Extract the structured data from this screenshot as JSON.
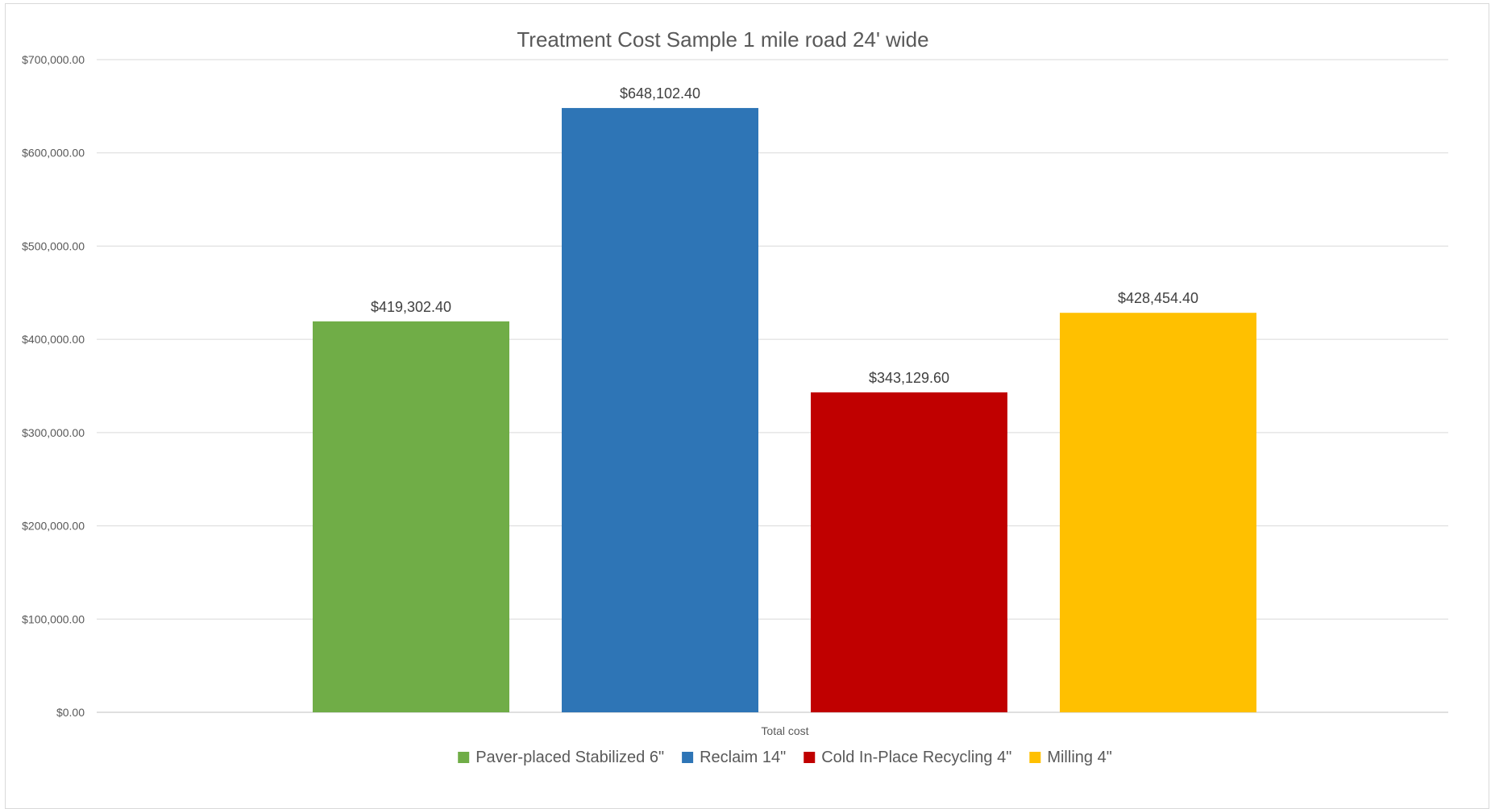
{
  "chart_data": {
    "type": "bar",
    "title": "Treatment Cost Sample 1 mile road 24' wide",
    "categories": [
      "Total cost"
    ],
    "series": [
      {
        "name": "Paver-placed Stabilized 6\"",
        "values": [
          419302.4
        ],
        "label": "$419,302.40",
        "color": "#70ad47"
      },
      {
        "name": "Reclaim 14\"",
        "values": [
          648102.4
        ],
        "label": "$648,102.40",
        "color": "#2e75b6"
      },
      {
        "name": "Cold In-Place Recycling 4\"",
        "values": [
          343129.6
        ],
        "label": "$343,129.60",
        "color": "#c00000"
      },
      {
        "name": "Milling 4\"",
        "values": [
          428454.4
        ],
        "label": "$428,454.40",
        "color": "#ffc000"
      }
    ],
    "ylim": [
      0,
      700000
    ],
    "y_ticks": [
      {
        "value": 0,
        "label": "$0.00"
      },
      {
        "value": 100000,
        "label": "$100,000.00"
      },
      {
        "value": 200000,
        "label": "$200,000.00"
      },
      {
        "value": 300000,
        "label": "$300,000.00"
      },
      {
        "value": 400000,
        "label": "$400,000.00"
      },
      {
        "value": 500000,
        "label": "$500,000.00"
      },
      {
        "value": 600000,
        "label": "$600,000.00"
      },
      {
        "value": 700000,
        "label": "$700,000.00"
      }
    ],
    "grid": true,
    "legend_position": "bottom"
  }
}
